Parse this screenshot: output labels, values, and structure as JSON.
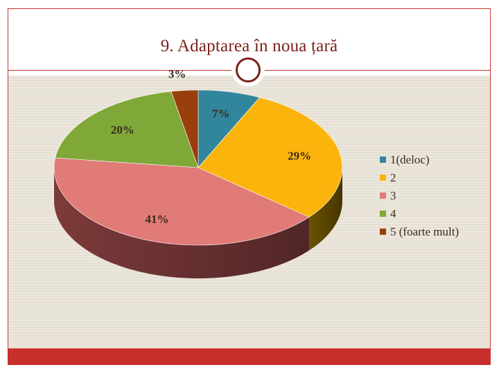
{
  "slide": {
    "title": "9. Adaptarea în noua țară"
  },
  "chart_data": {
    "type": "pie",
    "style": "3d",
    "categories": [
      "1(deloc)",
      "2",
      "3",
      "4",
      "5 (foarte mult)"
    ],
    "values": [
      7,
      29,
      41,
      20,
      3
    ],
    "value_labels": [
      "7%",
      "29%",
      "41%",
      "20%",
      "3%"
    ],
    "colors": [
      "#31859c",
      "#fbb40b",
      "#e07b77",
      "#80a839",
      "#9a3e0c"
    ],
    "side_colors": [
      "#1e5a6b",
      "#6b5200",
      "#7d3a3a",
      "#4a6a1f",
      "#5c2405"
    ],
    "legend_position": "right",
    "title": ""
  }
}
